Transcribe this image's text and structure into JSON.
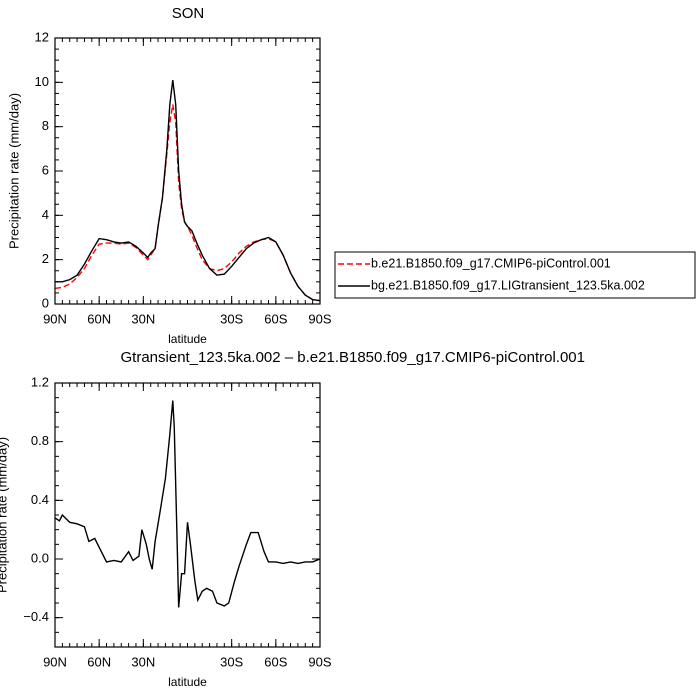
{
  "chart_data": [
    {
      "type": "line",
      "title": "SON",
      "xlabel": "latitude",
      "ylabel": "Precipitation rate (mm/day)",
      "xlim": [
        90,
        -90
      ],
      "xticks": [
        {
          "value": 90,
          "label": "90N"
        },
        {
          "value": 60,
          "label": "60N"
        },
        {
          "value": 30,
          "label": "30N"
        },
        {
          "value": -30,
          "label": "30S"
        },
        {
          "value": -60,
          "label": "60S"
        },
        {
          "value": -90,
          "label": "90S"
        }
      ],
      "ylim": [
        0,
        12
      ],
      "yticks": [
        0,
        2,
        4,
        6,
        8,
        10,
        12
      ],
      "legend": "right",
      "x": [
        90,
        85,
        80,
        75,
        70,
        65,
        60,
        55,
        50,
        45,
        40,
        35,
        30,
        27,
        25,
        22,
        20,
        17,
        14,
        12,
        10,
        8,
        6,
        4,
        2,
        0,
        -3,
        -6,
        -10,
        -15,
        -20,
        -25,
        -30,
        -35,
        -40,
        -45,
        -50,
        -55,
        -60,
        -65,
        -70,
        -75,
        -80,
        -85,
        -90
      ],
      "series": [
        {
          "name": "b.e21.B1850.f09_g17.CMIP6-piControl.001",
          "color": "#ff0000",
          "linestyle": "dashed",
          "values": [
            0.7,
            0.75,
            0.9,
            1.2,
            1.6,
            2.2,
            2.7,
            2.75,
            2.75,
            2.7,
            2.75,
            2.55,
            2.2,
            2.0,
            2.2,
            2.5,
            3.5,
            4.8,
            6.8,
            8.2,
            9.0,
            8.2,
            5.5,
            4.3,
            3.7,
            3.5,
            3.1,
            2.6,
            2.0,
            1.6,
            1.5,
            1.6,
            1.9,
            2.3,
            2.6,
            2.8,
            2.9,
            2.95,
            2.8,
            2.2,
            1.4,
            0.8,
            0.4,
            0.2,
            0.15
          ]
        },
        {
          "name": "bg.e21.B1850.f09_g17.LIGtransient_123.5ka.002",
          "color": "#000000",
          "linestyle": "solid",
          "values": [
            1.0,
            1.0,
            1.1,
            1.3,
            1.8,
            2.4,
            2.95,
            2.9,
            2.8,
            2.75,
            2.8,
            2.6,
            2.3,
            2.1,
            2.3,
            2.5,
            3.5,
            4.8,
            7.0,
            9.0,
            10.1,
            9.0,
            6.0,
            4.5,
            3.7,
            3.5,
            3.3,
            2.8,
            2.2,
            1.6,
            1.3,
            1.35,
            1.7,
            2.1,
            2.5,
            2.75,
            2.9,
            3.0,
            2.8,
            2.2,
            1.4,
            0.8,
            0.4,
            0.2,
            0.15
          ]
        }
      ]
    },
    {
      "type": "line",
      "title": "Gtransient_123.5ka.002 – b.e21.B1850.f09_g17.CMIP6-piControl.001",
      "xlabel": "latitude",
      "ylabel": "Precipitation rate (mm/day)",
      "xlim": [
        90,
        -90
      ],
      "xticks": [
        {
          "value": 90,
          "label": "90N"
        },
        {
          "value": 60,
          "label": "60N"
        },
        {
          "value": 30,
          "label": "30N"
        },
        {
          "value": -30,
          "label": "30S"
        },
        {
          "value": -60,
          "label": "60S"
        },
        {
          "value": -90,
          "label": "90S"
        }
      ],
      "ylim": [
        -0.6,
        1.2
      ],
      "yticks": [
        1.2,
        0.8,
        0.4,
        {
          "value": 0,
          "label": "0.0"
        },
        {
          "value": -0.4,
          "label": "−0.4"
        }
      ],
      "x": [
        90,
        87,
        85,
        80,
        75,
        70,
        67,
        63,
        60,
        55,
        50,
        45,
        40,
        37,
        33,
        31,
        28,
        26,
        24,
        22,
        19,
        15,
        12,
        10,
        9,
        7,
        6,
        4,
        2,
        0,
        -2,
        -5,
        -7,
        -10,
        -13,
        -17,
        -20,
        -25,
        -28,
        -32,
        -35,
        -40,
        -43,
        -48,
        -52,
        -55,
        -60,
        -65,
        -70,
        -75,
        -80,
        -85,
        -90
      ],
      "series": [
        {
          "color": "#000000",
          "linestyle": "solid",
          "values": [
            0.28,
            0.26,
            0.3,
            0.25,
            0.24,
            0.22,
            0.12,
            0.14,
            0.08,
            -0.02,
            -0.01,
            -0.02,
            0.05,
            -0.01,
            0.02,
            0.2,
            0.1,
            0.0,
            -0.07,
            0.12,
            0.3,
            0.55,
            0.85,
            1.08,
            0.9,
            0.1,
            -0.33,
            -0.1,
            -0.1,
            0.25,
            0.1,
            -0.15,
            -0.28,
            -0.22,
            -0.2,
            -0.22,
            -0.3,
            -0.32,
            -0.3,
            -0.15,
            -0.05,
            0.1,
            0.18,
            0.18,
            0.05,
            -0.02,
            -0.02,
            -0.03,
            -0.02,
            -0.03,
            -0.02,
            -0.02,
            0.0
          ]
        }
      ]
    }
  ]
}
